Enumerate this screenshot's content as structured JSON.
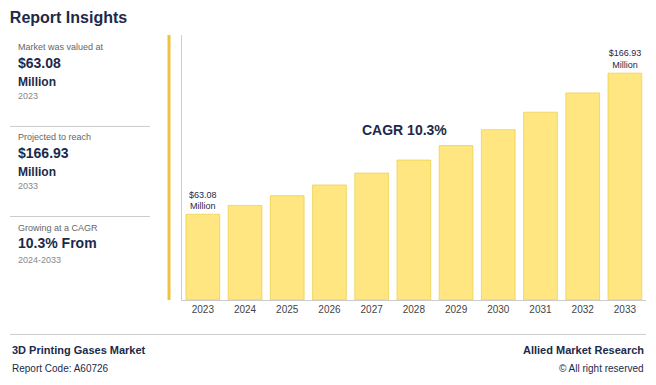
{
  "chart_data": {
    "type": "bar",
    "title": "Report Insights",
    "categories": [
      "2023",
      "2024",
      "2025",
      "2026",
      "2027",
      "2028",
      "2029",
      "2030",
      "2031",
      "2032",
      "2033"
    ],
    "values": [
      63.08,
      69.59,
      76.76,
      84.67,
      93.39,
      103.01,
      113.62,
      125.32,
      138.21,
      152.41,
      166.93
    ],
    "value_labels": [
      "$63.08\nMillion",
      null,
      null,
      null,
      null,
      null,
      null,
      null,
      null,
      null,
      "$166.93\nMillion"
    ],
    "data_labels": true,
    "color": "#FFE680",
    "ylim": [
      0,
      195
    ],
    "yticks": [],
    "grid": false,
    "tick_labels": "x",
    "annotation": "CAGR 10.3%",
    "sidebar": [
      {
        "label": "Market was valued at",
        "value": "$63.08",
        "unit": "Million",
        "period": "2023"
      },
      {
        "label": "Projected to reach",
        "value": "$166.93",
        "unit": "Million",
        "period": "2033"
      },
      {
        "label": "Growing at a CAGR",
        "value": "10.3% From",
        "period": "2024-2033"
      }
    ],
    "footer": {
      "left": [
        "3D Printing Gases Market",
        "Report Code: A60726"
      ],
      "right": [
        "Allied Market Research",
        "© All right reserved"
      ]
    }
  }
}
